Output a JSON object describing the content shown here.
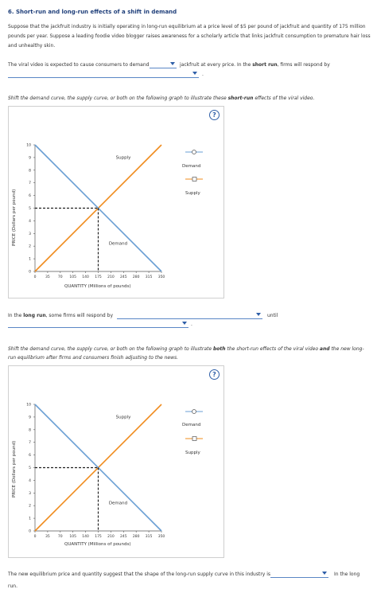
{
  "title": "6. Short-run and long-run effects of a shift in demand",
  "intro": "Suppose that the jackfruit industry is initially operating in long-run equilibrium at a price level of $5 per pound of jackfruit and quantity of 175 million pounds per year. Suppose a leading foodie video blogger raises awareness for a scholarly article that links jackfruit consumption to premature hair loss and unhealthy skin.",
  "q1": {
    "before": "The viral video is expected to cause consumers to demand",
    "after": "jackfruit at every price. In the",
    "bold": "short run",
    "after2": ", firms will respond by",
    "end": "."
  },
  "instr1": {
    "before": "Shift the demand curve, the supply curve, or both on the following graph to illustrate these",
    "bold": "short-run",
    "after": "effects of the viral video."
  },
  "q2": {
    "before": "In the",
    "bold": "long run",
    "after": ", some firms will respond by",
    "until": "until",
    "end": "."
  },
  "instr2": {
    "before": "Shift the demand curve, the supply curve, or both on the following graph to illustrate",
    "bold1": "both",
    "mid": "the short-run effects of the viral video",
    "bold2": "and",
    "after": "the new long-run equilibrium after firms and consumers finish adjusting to the news."
  },
  "q3": {
    "before": "The new equilibrium price and quantity suggest that the shape of the long-run supply curve in this industry is",
    "after": "In the long",
    "after2": "run."
  },
  "help_label": "?",
  "charts": [
    {
      "ylabel": "PRICE (Dollars per pound)",
      "xlabel": "QUANTITY (Millions of pounds)",
      "y_ticks": [
        "0",
        "1",
        "2",
        "3",
        "4",
        "5",
        "6",
        "7",
        "8",
        "9",
        "10"
      ],
      "x_ticks": [
        "0",
        "35",
        "70",
        "105",
        "140",
        "175",
        "210",
        "245",
        "280",
        "315",
        "350"
      ],
      "supply_label": "Supply",
      "demand_label": "Demand",
      "legend": [
        "Demand",
        "Supply"
      ]
    },
    {
      "ylabel": "PRICE (Dollars per pound)",
      "xlabel": "QUANTITY (Millions of pounds)",
      "y_ticks": [
        "0",
        "1",
        "2",
        "3",
        "4",
        "5",
        "6",
        "7",
        "8",
        "9",
        "10"
      ],
      "x_ticks": [
        "0",
        "35",
        "70",
        "105",
        "140",
        "175",
        "210",
        "245",
        "280",
        "315",
        "350"
      ],
      "supply_label": "Supply",
      "demand_label": "Demand",
      "legend": [
        "Demand",
        "Supply"
      ]
    }
  ],
  "chart_data": [
    {
      "type": "line",
      "xlabel": "QUANTITY (Millions of pounds)",
      "ylabel": "PRICE (Dollars per pound)",
      "xlim": [
        0,
        350
      ],
      "ylim": [
        0,
        10
      ],
      "series": [
        {
          "name": "Supply",
          "x": [
            0,
            350
          ],
          "y": [
            0,
            10
          ],
          "color": "#f08c1e"
        },
        {
          "name": "Demand",
          "x": [
            0,
            350
          ],
          "y": [
            10,
            0
          ],
          "color": "#6a9fd4"
        }
      ],
      "equilibrium": {
        "x": 175,
        "y": 5
      }
    },
    {
      "type": "line",
      "xlabel": "QUANTITY (Millions of pounds)",
      "ylabel": "PRICE (Dollars per pound)",
      "xlim": [
        0,
        350
      ],
      "ylim": [
        0,
        10
      ],
      "series": [
        {
          "name": "Supply",
          "x": [
            0,
            350
          ],
          "y": [
            0,
            10
          ],
          "color": "#f08c1e"
        },
        {
          "name": "Demand",
          "x": [
            0,
            350
          ],
          "y": [
            10,
            0
          ],
          "color": "#6a9fd4"
        }
      ],
      "equilibrium": {
        "x": 175,
        "y": 5
      }
    }
  ]
}
